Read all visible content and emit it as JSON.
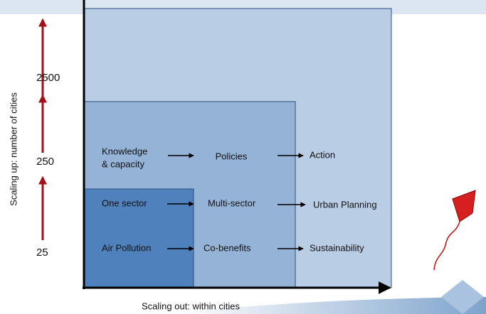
{
  "y_axis": {
    "label": "Scaling up: number of cities",
    "levels": [
      "2500",
      "250",
      "25"
    ]
  },
  "x_axis": {
    "label": "Scaling out: within cities"
  },
  "rows": [
    [
      [
        "Knowledge",
        "& capacity"
      ],
      "Policies",
      "Action"
    ],
    [
      "One sector",
      "Multi-sector",
      "Urban Planning"
    ],
    [
      "Air Pollution",
      "Co-benefits",
      "Sustainability"
    ]
  ]
}
